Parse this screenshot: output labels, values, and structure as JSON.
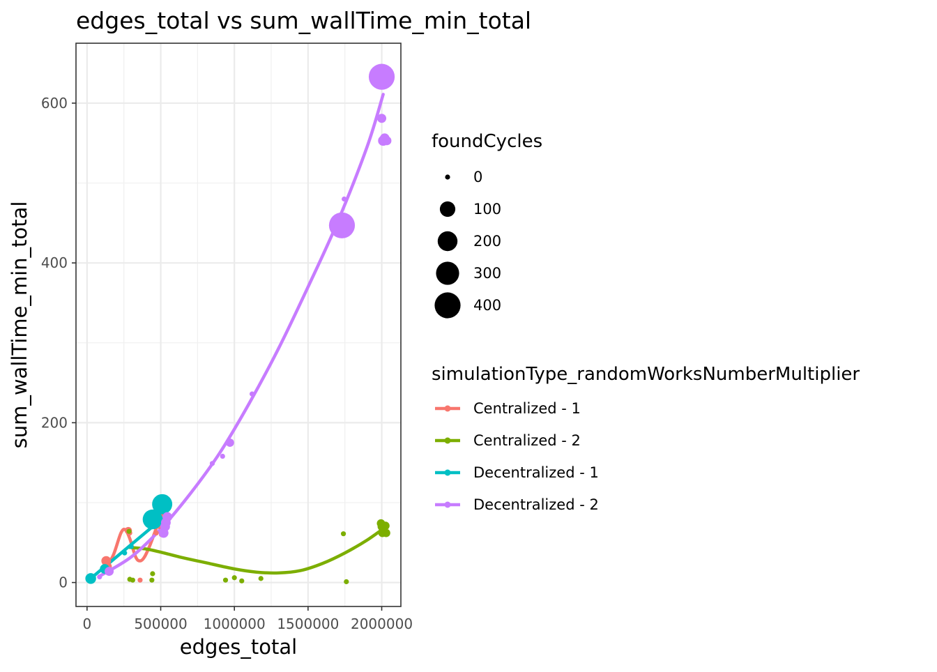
{
  "chart_data": {
    "type": "scatter",
    "title": "edges_total  vs  sum_wallTime_min_total",
    "xlabel": "edges_total",
    "ylabel": "sum_wallTime_min_total",
    "xlim": [
      -75000,
      2130000
    ],
    "ylim": [
      -30,
      675
    ],
    "x_ticks": [
      0,
      500000,
      1000000,
      1500000,
      2000000
    ],
    "x_tick_labels": [
      "0",
      "500000",
      "1000000",
      "1500000",
      "2000000"
    ],
    "y_ticks": [
      0,
      200,
      400,
      600
    ],
    "y_tick_labels": [
      "0",
      "200",
      "400",
      "600"
    ],
    "grid": true,
    "size_legend": {
      "title": "foundCycles",
      "values": [
        0,
        100,
        200,
        300,
        400
      ]
    },
    "color_legend": {
      "title": "simulationType_randomWorksNumberMultiplier"
    },
    "series": [
      {
        "name": "Centralized - 1",
        "color": "#F8766D",
        "points": [
          {
            "x": 130000,
            "y": 27,
            "size": 20
          },
          {
            "x": 140000,
            "y": 20,
            "size": 10
          },
          {
            "x": 150000,
            "y": 15,
            "size": 5
          },
          {
            "x": 280000,
            "y": 65,
            "size": 5
          },
          {
            "x": 290000,
            "y": 62,
            "size": 0
          },
          {
            "x": 360000,
            "y": 3,
            "size": 0
          },
          {
            "x": 470000,
            "y": 62,
            "size": 0
          },
          {
            "x": 490000,
            "y": 70,
            "size": 0
          },
          {
            "x": 505000,
            "y": 60,
            "size": 0
          },
          {
            "x": 515000,
            "y": 85,
            "size": 0
          }
        ],
        "trend": [
          [
            130000,
            18
          ],
          [
            180000,
            35
          ],
          [
            230000,
            62
          ],
          [
            260000,
            66
          ],
          [
            290000,
            55
          ],
          [
            330000,
            32
          ],
          [
            360000,
            27
          ],
          [
            390000,
            32
          ],
          [
            430000,
            48
          ],
          [
            470000,
            68
          ],
          [
            500000,
            82
          ],
          [
            520000,
            86
          ]
        ]
      },
      {
        "name": "Centralized - 2",
        "color": "#7CAE00",
        "points": [
          {
            "x": 285000,
            "y": 64,
            "size": 0
          },
          {
            "x": 290000,
            "y": 4,
            "size": 0
          },
          {
            "x": 310000,
            "y": 3,
            "size": 0
          },
          {
            "x": 440000,
            "y": 3,
            "size": 0
          },
          {
            "x": 445000,
            "y": 11,
            "size": 0
          },
          {
            "x": 525000,
            "y": 60,
            "size": 0
          },
          {
            "x": 940000,
            "y": 3,
            "size": 0
          },
          {
            "x": 1000000,
            "y": 6,
            "size": 0
          },
          {
            "x": 1050000,
            "y": 2,
            "size": 0
          },
          {
            "x": 1180000,
            "y": 5,
            "size": 0
          },
          {
            "x": 1740000,
            "y": 61,
            "size": 0
          },
          {
            "x": 1760000,
            "y": 1,
            "size": 0
          },
          {
            "x": 1995000,
            "y": 74,
            "size": 10
          },
          {
            "x": 2000000,
            "y": 70,
            "size": 10
          },
          {
            "x": 2005000,
            "y": 62,
            "size": 10
          },
          {
            "x": 2025000,
            "y": 71,
            "size": 10
          },
          {
            "x": 2030000,
            "y": 62,
            "size": 10
          }
        ],
        "trend": [
          [
            285000,
            44
          ],
          [
            400000,
            42
          ],
          [
            500000,
            38
          ],
          [
            650000,
            31
          ],
          [
            800000,
            25
          ],
          [
            1000000,
            17
          ],
          [
            1150000,
            13
          ],
          [
            1300000,
            12
          ],
          [
            1450000,
            15
          ],
          [
            1600000,
            24
          ],
          [
            1750000,
            37
          ],
          [
            1900000,
            53
          ],
          [
            2030000,
            70
          ]
        ]
      },
      {
        "name": "Decentralized - 1",
        "color": "#00BFC4",
        "points": [
          {
            "x": 25000,
            "y": 5,
            "size": 30
          },
          {
            "x": 120000,
            "y": 17,
            "size": 20
          },
          {
            "x": 255000,
            "y": 37,
            "size": 0
          },
          {
            "x": 300000,
            "y": 45,
            "size": 0
          },
          {
            "x": 445000,
            "y": 79,
            "size": 200
          },
          {
            "x": 510000,
            "y": 98,
            "size": 210
          }
        ],
        "trend": [
          [
            25000,
            5
          ],
          [
            510000,
            80
          ]
        ]
      },
      {
        "name": "Decentralized - 2",
        "color": "#C77CFF",
        "points": [
          {
            "x": 85000,
            "y": 7,
            "size": 0
          },
          {
            "x": 150000,
            "y": 14,
            "size": 15
          },
          {
            "x": 520000,
            "y": 62,
            "size": 20
          },
          {
            "x": 530000,
            "y": 70,
            "size": 20
          },
          {
            "x": 535000,
            "y": 75,
            "size": 20
          },
          {
            "x": 545000,
            "y": 82,
            "size": 20
          },
          {
            "x": 850000,
            "y": 149,
            "size": 0
          },
          {
            "x": 920000,
            "y": 158,
            "size": 0
          },
          {
            "x": 970000,
            "y": 175,
            "size": 10
          },
          {
            "x": 1120000,
            "y": 236,
            "size": 0
          },
          {
            "x": 1745000,
            "y": 480,
            "size": 0
          },
          {
            "x": 1730000,
            "y": 447,
            "size": 400
          },
          {
            "x": 2000000,
            "y": 633,
            "size": 400
          },
          {
            "x": 2000000,
            "y": 581,
            "size": 15
          },
          {
            "x": 2010000,
            "y": 553,
            "size": 25
          },
          {
            "x": 2020000,
            "y": 556,
            "size": 20
          },
          {
            "x": 2035000,
            "y": 553,
            "size": 15
          }
        ],
        "trend": [
          [
            85000,
            8
          ],
          [
            300000,
            32
          ],
          [
            500000,
            67
          ],
          [
            700000,
            111
          ],
          [
            900000,
            162
          ],
          [
            1100000,
            224
          ],
          [
            1300000,
            293
          ],
          [
            1500000,
            370
          ],
          [
            1700000,
            451
          ],
          [
            1900000,
            545
          ],
          [
            2010000,
            611
          ]
        ]
      }
    ]
  }
}
